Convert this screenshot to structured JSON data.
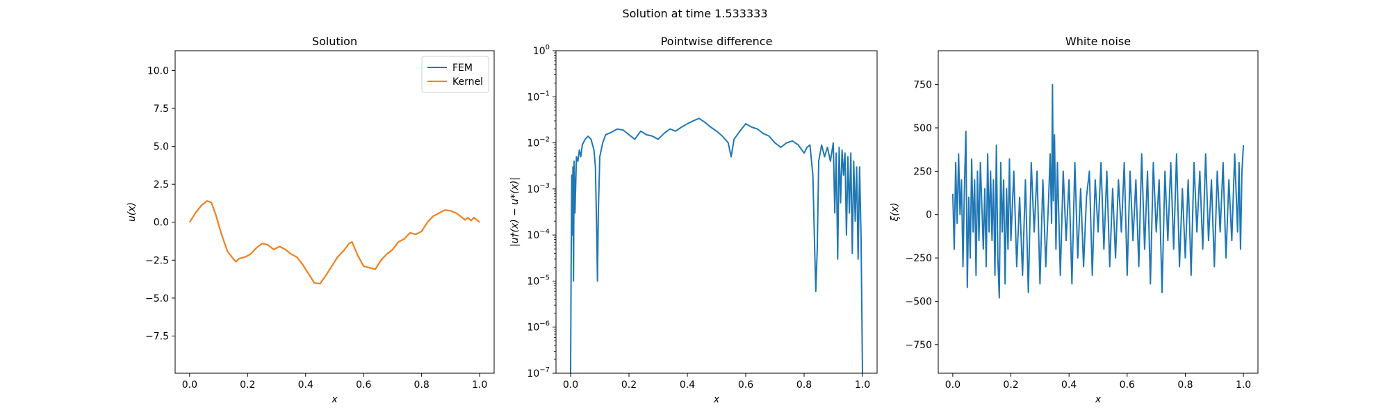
{
  "figure": {
    "suptitle": "Solution at time 1.533333"
  },
  "colors": {
    "fem": "#1f77b4",
    "kernel": "#ff7f0e",
    "axis": "#000000",
    "background": "#ffffff"
  },
  "chart_data": [
    {
      "type": "line",
      "title": "Solution",
      "xlabel": "x",
      "ylabel": "u(x)",
      "xlim": [
        -0.05,
        1.05
      ],
      "ylim": [
        -9.95,
        11.3
      ],
      "xticks": [
        0.0,
        0.2,
        0.4,
        0.6,
        0.8,
        1.0
      ],
      "xtick_labels": [
        "0.0",
        "0.2",
        "0.4",
        "0.6",
        "0.8",
        "1.0"
      ],
      "yticks": [
        -7.5,
        -5.0,
        -2.5,
        0.0,
        2.5,
        5.0,
        7.5,
        10.0
      ],
      "ytick_labels": [
        "−7.5",
        "−5.0",
        "−2.5",
        "0.0",
        "2.5",
        "5.0",
        "7.5",
        "10.0"
      ],
      "grid": false,
      "legend": "top-right",
      "series": [
        {
          "name": "FEM",
          "color": "#1f77b4",
          "x": [
            0.0,
            0.02,
            0.04,
            0.06,
            0.075,
            0.09,
            0.11,
            0.13,
            0.15,
            0.16,
            0.17,
            0.19,
            0.21,
            0.23,
            0.25,
            0.27,
            0.29,
            0.31,
            0.33,
            0.35,
            0.37,
            0.39,
            0.41,
            0.43,
            0.45,
            0.47,
            0.49,
            0.51,
            0.53,
            0.55,
            0.56,
            0.58,
            0.6,
            0.62,
            0.64,
            0.66,
            0.68,
            0.7,
            0.72,
            0.74,
            0.76,
            0.78,
            0.8,
            0.82,
            0.84,
            0.86,
            0.88,
            0.9,
            0.92,
            0.94,
            0.95,
            0.96,
            0.97,
            0.98,
            1.0
          ],
          "y": [
            0.0,
            0.6,
            1.1,
            1.4,
            1.3,
            0.5,
            -0.8,
            -1.9,
            -2.4,
            -2.6,
            -2.4,
            -2.3,
            -2.1,
            -1.7,
            -1.4,
            -1.5,
            -1.8,
            -1.6,
            -1.8,
            -2.1,
            -2.3,
            -2.8,
            -3.4,
            -4.0,
            -4.05,
            -3.5,
            -2.9,
            -2.3,
            -1.9,
            -1.4,
            -1.3,
            -2.2,
            -2.9,
            -3.0,
            -3.1,
            -2.5,
            -2.1,
            -1.8,
            -1.3,
            -1.1,
            -0.7,
            -0.8,
            -0.6,
            0.0,
            0.4,
            0.6,
            0.8,
            0.75,
            0.6,
            0.3,
            0.15,
            0.3,
            0.1,
            0.3,
            0.0
          ]
        },
        {
          "name": "Kernel",
          "color": "#ff7f0e",
          "x": [
            0.0,
            0.02,
            0.04,
            0.06,
            0.075,
            0.09,
            0.11,
            0.13,
            0.15,
            0.16,
            0.17,
            0.19,
            0.21,
            0.23,
            0.25,
            0.27,
            0.29,
            0.31,
            0.33,
            0.35,
            0.37,
            0.39,
            0.41,
            0.43,
            0.45,
            0.47,
            0.49,
            0.51,
            0.53,
            0.55,
            0.56,
            0.58,
            0.6,
            0.62,
            0.64,
            0.66,
            0.68,
            0.7,
            0.72,
            0.74,
            0.76,
            0.78,
            0.8,
            0.82,
            0.84,
            0.86,
            0.88,
            0.9,
            0.92,
            0.94,
            0.95,
            0.96,
            0.97,
            0.98,
            1.0
          ],
          "y": [
            0.0,
            0.6,
            1.1,
            1.4,
            1.3,
            0.5,
            -0.8,
            -1.9,
            -2.4,
            -2.6,
            -2.4,
            -2.3,
            -2.1,
            -1.7,
            -1.4,
            -1.5,
            -1.8,
            -1.6,
            -1.8,
            -2.1,
            -2.3,
            -2.8,
            -3.4,
            -4.0,
            -4.05,
            -3.5,
            -2.9,
            -2.3,
            -1.9,
            -1.4,
            -1.3,
            -2.2,
            -2.9,
            -3.0,
            -3.1,
            -2.5,
            -2.1,
            -1.8,
            -1.3,
            -1.1,
            -0.7,
            -0.8,
            -0.6,
            0.0,
            0.4,
            0.6,
            0.8,
            0.75,
            0.6,
            0.3,
            0.15,
            0.3,
            0.1,
            0.3,
            0.0
          ]
        }
      ]
    },
    {
      "type": "line",
      "title": "Pointwise difference",
      "xlabel": "x",
      "ylabel": "|u†(x) − u*(x)|",
      "yscale": "log",
      "xlim": [
        -0.05,
        1.05
      ],
      "ylim": [
        1e-07,
        1
      ],
      "xticks": [
        0.0,
        0.2,
        0.4,
        0.6,
        0.8,
        1.0
      ],
      "xtick_labels": [
        "0.0",
        "0.2",
        "0.4",
        "0.6",
        "0.8",
        "1.0"
      ],
      "yticks": [
        1e-07,
        1e-06,
        1e-05,
        0.0001,
        0.001,
        0.01,
        0.1,
        1
      ],
      "ytick_labels": [
        [
          "10",
          "−7"
        ],
        [
          "10",
          "−6"
        ],
        [
          "10",
          "−5"
        ],
        [
          "10",
          "−4"
        ],
        [
          "10",
          "−3"
        ],
        [
          "10",
          "−2"
        ],
        [
          "10",
          "−1"
        ],
        [
          "10",
          "0"
        ]
      ],
      "grid": false,
      "series": [
        {
          "color": "#1f77b4",
          "x": [
            0.0,
            0.002,
            0.004,
            0.006,
            0.008,
            0.01,
            0.012,
            0.015,
            0.02,
            0.025,
            0.03,
            0.035,
            0.04,
            0.05,
            0.06,
            0.07,
            0.08,
            0.085,
            0.09,
            0.092,
            0.095,
            0.1,
            0.11,
            0.12,
            0.14,
            0.16,
            0.18,
            0.2,
            0.22,
            0.24,
            0.26,
            0.28,
            0.3,
            0.32,
            0.34,
            0.36,
            0.38,
            0.4,
            0.42,
            0.44,
            0.46,
            0.48,
            0.5,
            0.52,
            0.54,
            0.55,
            0.56,
            0.58,
            0.6,
            0.62,
            0.64,
            0.66,
            0.68,
            0.7,
            0.72,
            0.74,
            0.76,
            0.78,
            0.8,
            0.81,
            0.82,
            0.83,
            0.835,
            0.84,
            0.845,
            0.85,
            0.86,
            0.87,
            0.88,
            0.89,
            0.9,
            0.905,
            0.91,
            0.915,
            0.92,
            0.925,
            0.93,
            0.935,
            0.94,
            0.945,
            0.95,
            0.955,
            0.96,
            0.965,
            0.97,
            0.975,
            0.98,
            0.985,
            0.99,
            0.995,
            1.0
          ],
          "y": [
            1e-07,
            3e-05,
            0.002,
            0.0001,
            0.003,
            1e-05,
            0.004,
            0.0003,
            0.005,
            0.004,
            0.007,
            0.005,
            0.009,
            0.012,
            0.014,
            0.012,
            0.007,
            0.003,
            8e-05,
            1e-05,
            0.0003,
            0.005,
            0.01,
            0.015,
            0.017,
            0.02,
            0.019,
            0.015,
            0.012,
            0.018,
            0.015,
            0.014,
            0.012,
            0.016,
            0.02,
            0.018,
            0.022,
            0.026,
            0.03,
            0.034,
            0.028,
            0.022,
            0.018,
            0.014,
            0.01,
            0.005,
            0.012,
            0.018,
            0.026,
            0.022,
            0.02,
            0.016,
            0.014,
            0.01,
            0.008,
            0.01,
            0.011,
            0.009,
            0.006,
            0.008,
            0.009,
            0.002,
            0.0001,
            6e-06,
            5e-05,
            0.004,
            0.009,
            0.005,
            0.008,
            0.004,
            0.01,
            0.0003,
            0.006,
            3e-05,
            0.008,
            0.0005,
            0.007,
            0.002,
            0.006,
            0.0001,
            0.005,
            0.0003,
            0.006,
            4e-05,
            0.004,
            0.0002,
            0.003,
            3e-05,
            0.003,
            0.0001,
            1e-07
          ]
        }
      ]
    },
    {
      "type": "line",
      "title": "White noise",
      "xlabel": "x",
      "ylabel": "ξ(x)",
      "xlim": [
        -0.05,
        1.05
      ],
      "ylim": [
        -915,
        945
      ],
      "xticks": [
        0.0,
        0.2,
        0.4,
        0.6,
        0.8,
        1.0
      ],
      "xtick_labels": [
        "0.0",
        "0.2",
        "0.4",
        "0.6",
        "0.8",
        "1.0"
      ],
      "yticks": [
        -750,
        -500,
        -250,
        0,
        250,
        500,
        750
      ],
      "ytick_labels": [
        "−750",
        "−500",
        "−250",
        "0",
        "250",
        "500",
        "750"
      ],
      "grid": false,
      "series": [
        {
          "color": "#1f77b4",
          "x": [
            0.0,
            0.005,
            0.01,
            0.015,
            0.02,
            0.025,
            0.03,
            0.035,
            0.04,
            0.045,
            0.05,
            0.055,
            0.06,
            0.065,
            0.07,
            0.075,
            0.08,
            0.085,
            0.09,
            0.095,
            0.1,
            0.105,
            0.11,
            0.115,
            0.12,
            0.125,
            0.13,
            0.135,
            0.14,
            0.145,
            0.15,
            0.155,
            0.16,
            0.165,
            0.17,
            0.175,
            0.18,
            0.185,
            0.19,
            0.195,
            0.2,
            0.21,
            0.22,
            0.23,
            0.24,
            0.25,
            0.26,
            0.27,
            0.28,
            0.29,
            0.3,
            0.31,
            0.32,
            0.33,
            0.335,
            0.34,
            0.343,
            0.346,
            0.35,
            0.355,
            0.36,
            0.37,
            0.38,
            0.39,
            0.4,
            0.41,
            0.42,
            0.43,
            0.44,
            0.45,
            0.46,
            0.47,
            0.48,
            0.49,
            0.5,
            0.51,
            0.52,
            0.53,
            0.54,
            0.55,
            0.56,
            0.57,
            0.58,
            0.59,
            0.6,
            0.61,
            0.62,
            0.63,
            0.64,
            0.65,
            0.66,
            0.67,
            0.68,
            0.69,
            0.7,
            0.71,
            0.72,
            0.73,
            0.74,
            0.75,
            0.76,
            0.77,
            0.78,
            0.79,
            0.8,
            0.81,
            0.82,
            0.83,
            0.84,
            0.85,
            0.86,
            0.87,
            0.88,
            0.89,
            0.9,
            0.91,
            0.92,
            0.93,
            0.94,
            0.95,
            0.96,
            0.97,
            0.98,
            0.985,
            0.99,
            0.995,
            1.0
          ],
          "y": [
            120,
            -200,
            300,
            -50,
            350,
            0,
            200,
            -300,
            150,
            480,
            -420,
            100,
            -250,
            320,
            -100,
            200,
            -350,
            250,
            -150,
            300,
            50,
            -200,
            150,
            -300,
            350,
            -100,
            250,
            -150,
            200,
            -350,
            400,
            -250,
            -480,
            300,
            -100,
            200,
            -400,
            150,
            -200,
            320,
            -150,
            250,
            -300,
            100,
            -350,
            200,
            -450,
            300,
            -100,
            250,
            -400,
            200,
            -300,
            100,
            350,
            -50,
            750,
            80,
            460,
            -200,
            300,
            -350,
            250,
            -150,
            200,
            -400,
            300,
            -250,
            150,
            -300,
            100,
            250,
            -350,
            200,
            -100,
            300,
            -200,
            250,
            -300,
            150,
            -250,
            200,
            -100,
            300,
            -350,
            250,
            -150,
            200,
            -300,
            350,
            -200,
            250,
            -400,
            300,
            -100,
            200,
            -450,
            250,
            -150,
            300,
            -200,
            350,
            -300,
            150,
            -250,
            200,
            -350,
            300,
            -100,
            250,
            -200,
            350,
            -150,
            200,
            -300,
            250,
            -100,
            300,
            -250,
            200,
            -150,
            350,
            -100,
            300,
            -200,
            250,
            400
          ]
        }
      ]
    }
  ]
}
